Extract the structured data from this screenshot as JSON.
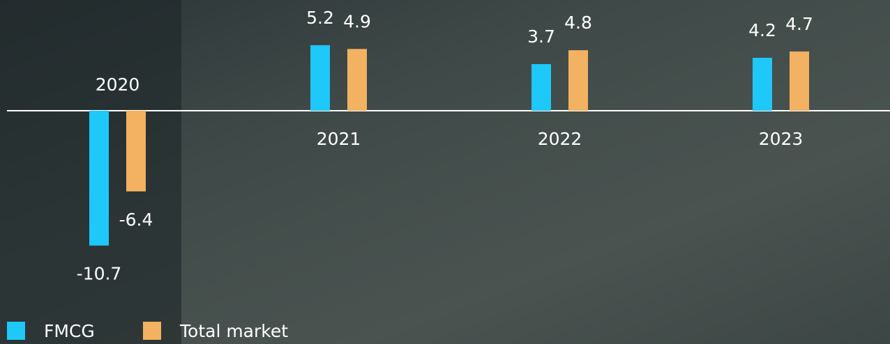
{
  "chart_data": {
    "type": "bar",
    "categories": [
      "2020",
      "2021",
      "2022",
      "2023"
    ],
    "series": [
      {
        "name": "FMCG",
        "color": "#1ec8f8",
        "values": [
          -10.7,
          5.2,
          3.7,
          4.2
        ]
      },
      {
        "name": "Total market",
        "color": "#f2b261",
        "values": [
          -6.4,
          4.9,
          4.8,
          4.7
        ]
      }
    ],
    "legend": "bottom-left"
  }
}
